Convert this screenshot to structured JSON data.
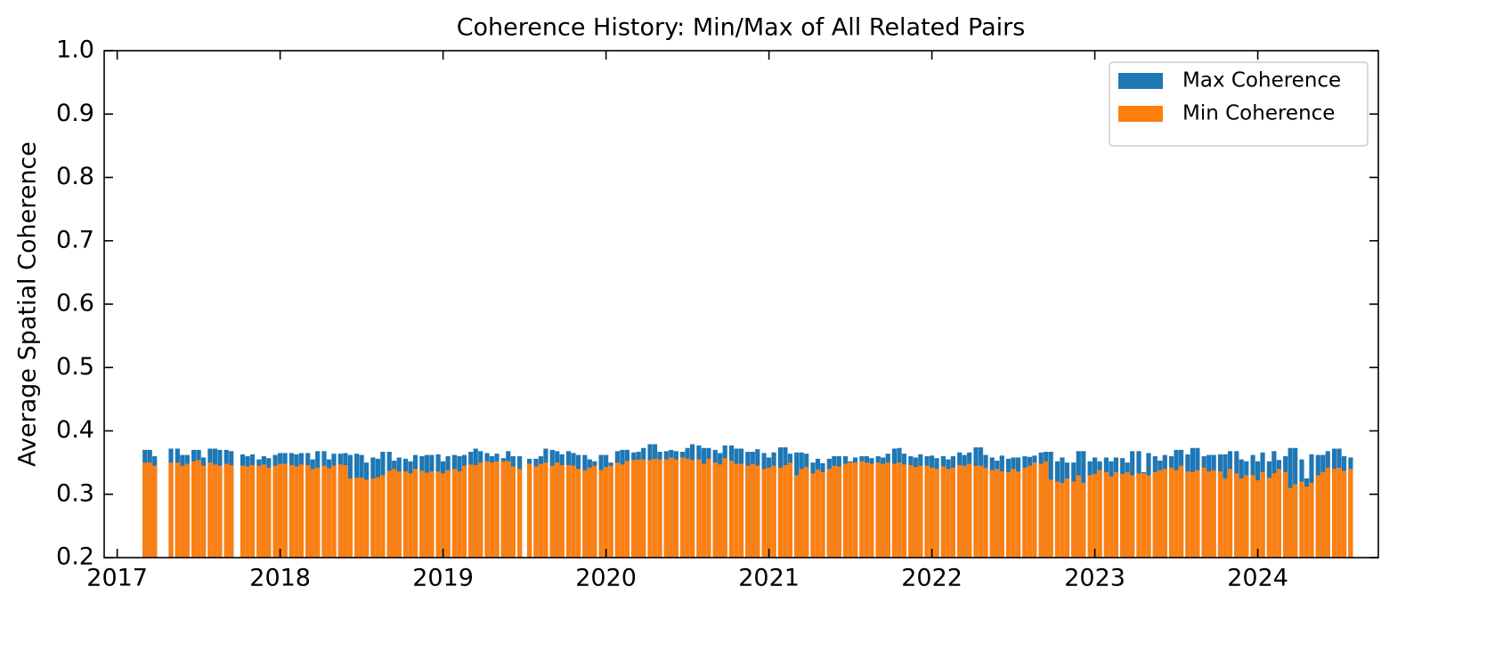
{
  "chart_data": {
    "type": "bar",
    "title": "Coherence History: Min/Max of All Related Pairs",
    "y_label": "Average Spatial Coherence",
    "xlim": [
      2016.92,
      2024.74
    ],
    "xticks": [
      2017,
      2018,
      2019,
      2020,
      2021,
      2022,
      2023,
      2024
    ],
    "ylim": [
      0.2,
      1.0
    ],
    "yticks": [
      {
        "value": 0.2,
        "label": "0.2"
      },
      {
        "value": 0.3,
        "label": "0.3"
      },
      {
        "value": 0.4,
        "label": "0.4"
      },
      {
        "value": 0.5,
        "label": "0.5"
      },
      {
        "value": 0.6,
        "label": "0.6"
      },
      {
        "value": 0.7,
        "label": "0.7"
      },
      {
        "value": 0.8,
        "label": "0.8"
      },
      {
        "value": 0.9,
        "label": "0.9"
      },
      {
        "value": 1.0,
        "label": "1.0"
      }
    ],
    "legend": "upper right",
    "grid": false,
    "x": [
      2017.17,
      2017.2,
      2017.23,
      2017.33,
      2017.37,
      2017.4,
      2017.43,
      2017.47,
      2017.5,
      2017.53,
      2017.57,
      2017.6,
      2017.63,
      2017.67,
      2017.7,
      2017.77,
      2017.8,
      2017.83,
      2017.87,
      2017.9,
      2017.93,
      2017.97,
      2018.0,
      2018.03,
      2018.07,
      2018.1,
      2018.13,
      2018.17,
      2018.2,
      2018.23,
      2018.27,
      2018.3,
      2018.33,
      2018.37,
      2018.4,
      2018.43,
      2018.47,
      2018.5,
      2018.53,
      2018.57,
      2018.6,
      2018.63,
      2018.67,
      2018.7,
      2018.73,
      2018.77,
      2018.8,
      2018.83,
      2018.87,
      2018.9,
      2018.93,
      2018.97,
      2019.0,
      2019.03,
      2019.07,
      2019.1,
      2019.13,
      2019.17,
      2019.2,
      2019.23,
      2019.27,
      2019.3,
      2019.33,
      2019.37,
      2019.4,
      2019.43,
      2019.47,
      2019.53,
      2019.57,
      2019.6,
      2019.63,
      2019.67,
      2019.7,
      2019.73,
      2019.77,
      2019.8,
      2019.83,
      2019.87,
      2019.9,
      2019.93,
      2019.97,
      2020.0,
      2020.03,
      2020.07,
      2020.1,
      2020.13,
      2020.17,
      2020.2,
      2020.23,
      2020.27,
      2020.3,
      2020.33,
      2020.37,
      2020.4,
      2020.43,
      2020.47,
      2020.5,
      2020.53,
      2020.57,
      2020.6,
      2020.63,
      2020.67,
      2020.7,
      2020.73,
      2020.77,
      2020.8,
      2020.83,
      2020.87,
      2020.9,
      2020.93,
      2020.97,
      2021.0,
      2021.03,
      2021.07,
      2021.1,
      2021.13,
      2021.17,
      2021.2,
      2021.23,
      2021.27,
      2021.3,
      2021.33,
      2021.37,
      2021.4,
      2021.43,
      2021.47,
      2021.5,
      2021.53,
      2021.57,
      2021.6,
      2021.63,
      2021.67,
      2021.7,
      2021.73,
      2021.77,
      2021.8,
      2021.83,
      2021.87,
      2021.9,
      2021.93,
      2021.97,
      2022.0,
      2022.03,
      2022.07,
      2022.1,
      2022.13,
      2022.17,
      2022.2,
      2022.23,
      2022.27,
      2022.3,
      2022.33,
      2022.37,
      2022.4,
      2022.43,
      2022.47,
      2022.5,
      2022.53,
      2022.57,
      2022.6,
      2022.63,
      2022.67,
      2022.7,
      2022.73,
      2022.77,
      2022.8,
      2022.83,
      2022.87,
      2022.9,
      2022.93,
      2022.97,
      2023.0,
      2023.03,
      2023.07,
      2023.1,
      2023.13,
      2023.17,
      2023.2,
      2023.23,
      2023.27,
      2023.3,
      2023.33,
      2023.37,
      2023.4,
      2023.43,
      2023.47,
      2023.5,
      2023.53,
      2023.57,
      2023.6,
      2023.63,
      2023.67,
      2023.7,
      2023.73,
      2023.77,
      2023.8,
      2023.83,
      2023.87,
      2023.9,
      2023.93,
      2023.97,
      2024.0,
      2024.03,
      2024.07,
      2024.1,
      2024.13,
      2024.17,
      2024.2,
      2024.23,
      2024.27,
      2024.3,
      2024.33,
      2024.37,
      2024.4,
      2024.43,
      2024.47,
      2024.5,
      2024.53,
      2024.57
    ],
    "series": [
      {
        "name": "Max Coherence",
        "color": "#1f77b4",
        "values": [
          0.37,
          0.37,
          0.36,
          0.372,
          0.372,
          0.362,
          0.362,
          0.37,
          0.37,
          0.358,
          0.372,
          0.372,
          0.37,
          0.37,
          0.368,
          0.363,
          0.36,
          0.363,
          0.355,
          0.36,
          0.357,
          0.362,
          0.365,
          0.365,
          0.365,
          0.363,
          0.365,
          0.365,
          0.355,
          0.368,
          0.368,
          0.355,
          0.364,
          0.364,
          0.365,
          0.362,
          0.364,
          0.362,
          0.35,
          0.358,
          0.356,
          0.367,
          0.367,
          0.353,
          0.358,
          0.356,
          0.352,
          0.362,
          0.36,
          0.362,
          0.362,
          0.363,
          0.352,
          0.36,
          0.362,
          0.36,
          0.362,
          0.367,
          0.372,
          0.368,
          0.365,
          0.36,
          0.364,
          0.357,
          0.368,
          0.36,
          0.36,
          0.356,
          0.356,
          0.36,
          0.372,
          0.37,
          0.368,
          0.363,
          0.368,
          0.365,
          0.362,
          0.362,
          0.355,
          0.352,
          0.362,
          0.362,
          0.35,
          0.368,
          0.37,
          0.37,
          0.366,
          0.367,
          0.373,
          0.379,
          0.379,
          0.367,
          0.368,
          0.37,
          0.368,
          0.367,
          0.373,
          0.379,
          0.377,
          0.373,
          0.373,
          0.37,
          0.365,
          0.377,
          0.377,
          0.372,
          0.372,
          0.367,
          0.367,
          0.371,
          0.365,
          0.358,
          0.366,
          0.374,
          0.374,
          0.364,
          0.366,
          0.366,
          0.364,
          0.35,
          0.356,
          0.349,
          0.356,
          0.36,
          0.36,
          0.36,
          0.352,
          0.358,
          0.36,
          0.36,
          0.357,
          0.36,
          0.358,
          0.364,
          0.372,
          0.373,
          0.364,
          0.36,
          0.358,
          0.363,
          0.36,
          0.361,
          0.357,
          0.36,
          0.355,
          0.36,
          0.366,
          0.362,
          0.366,
          0.374,
          0.374,
          0.362,
          0.358,
          0.353,
          0.361,
          0.356,
          0.358,
          0.358,
          0.36,
          0.359,
          0.361,
          0.366,
          0.367,
          0.367,
          0.352,
          0.358,
          0.35,
          0.35,
          0.368,
          0.368,
          0.352,
          0.358,
          0.352,
          0.358,
          0.352,
          0.358,
          0.357,
          0.35,
          0.368,
          0.368,
          0.335,
          0.365,
          0.36,
          0.353,
          0.362,
          0.36,
          0.37,
          0.37,
          0.363,
          0.373,
          0.373,
          0.36,
          0.362,
          0.362,
          0.363,
          0.363,
          0.368,
          0.368,
          0.355,
          0.352,
          0.362,
          0.352,
          0.366,
          0.352,
          0.368,
          0.354,
          0.36,
          0.373,
          0.373,
          0.355,
          0.325,
          0.363,
          0.362,
          0.362,
          0.368,
          0.372,
          0.372,
          0.36,
          0.358
        ]
      },
      {
        "name": "Min Coherence",
        "color": "#ff7f0e",
        "values": [
          0.35,
          0.35,
          0.345,
          0.35,
          0.35,
          0.345,
          0.348,
          0.352,
          0.354,
          0.345,
          0.35,
          0.347,
          0.345,
          0.348,
          0.346,
          0.345,
          0.344,
          0.346,
          0.345,
          0.347,
          0.342,
          0.345,
          0.348,
          0.348,
          0.346,
          0.344,
          0.347,
          0.346,
          0.34,
          0.342,
          0.345,
          0.341,
          0.345,
          0.347,
          0.346,
          0.325,
          0.326,
          0.326,
          0.323,
          0.325,
          0.327,
          0.33,
          0.337,
          0.34,
          0.336,
          0.336,
          0.333,
          0.34,
          0.337,
          0.334,
          0.336,
          0.336,
          0.333,
          0.338,
          0.34,
          0.336,
          0.345,
          0.347,
          0.346,
          0.35,
          0.352,
          0.35,
          0.352,
          0.352,
          0.352,
          0.344,
          0.34,
          0.348,
          0.344,
          0.348,
          0.35,
          0.345,
          0.35,
          0.346,
          0.346,
          0.345,
          0.34,
          0.338,
          0.342,
          0.345,
          0.338,
          0.343,
          0.345,
          0.35,
          0.347,
          0.353,
          0.354,
          0.355,
          0.355,
          0.354,
          0.356,
          0.355,
          0.355,
          0.358,
          0.355,
          0.358,
          0.356,
          0.354,
          0.355,
          0.348,
          0.356,
          0.35,
          0.347,
          0.357,
          0.353,
          0.348,
          0.348,
          0.345,
          0.348,
          0.345,
          0.34,
          0.342,
          0.345,
          0.342,
          0.346,
          0.35,
          0.33,
          0.34,
          0.343,
          0.333,
          0.339,
          0.335,
          0.34,
          0.345,
          0.344,
          0.348,
          0.35,
          0.35,
          0.352,
          0.35,
          0.348,
          0.35,
          0.348,
          0.35,
          0.348,
          0.35,
          0.347,
          0.346,
          0.343,
          0.345,
          0.345,
          0.342,
          0.34,
          0.344,
          0.34,
          0.342,
          0.346,
          0.345,
          0.348,
          0.345,
          0.345,
          0.342,
          0.338,
          0.34,
          0.336,
          0.335,
          0.34,
          0.336,
          0.342,
          0.345,
          0.35,
          0.348,
          0.352,
          0.323,
          0.32,
          0.318,
          0.325,
          0.32,
          0.33,
          0.318,
          0.33,
          0.332,
          0.338,
          0.335,
          0.328,
          0.335,
          0.332,
          0.335,
          0.33,
          0.333,
          0.333,
          0.33,
          0.335,
          0.338,
          0.34,
          0.342,
          0.338,
          0.345,
          0.336,
          0.335,
          0.338,
          0.342,
          0.336,
          0.338,
          0.336,
          0.325,
          0.34,
          0.333,
          0.325,
          0.33,
          0.33,
          0.322,
          0.335,
          0.326,
          0.333,
          0.34,
          0.335,
          0.31,
          0.316,
          0.32,
          0.312,
          0.318,
          0.33,
          0.335,
          0.342,
          0.34,
          0.342,
          0.337,
          0.34
        ]
      }
    ]
  }
}
